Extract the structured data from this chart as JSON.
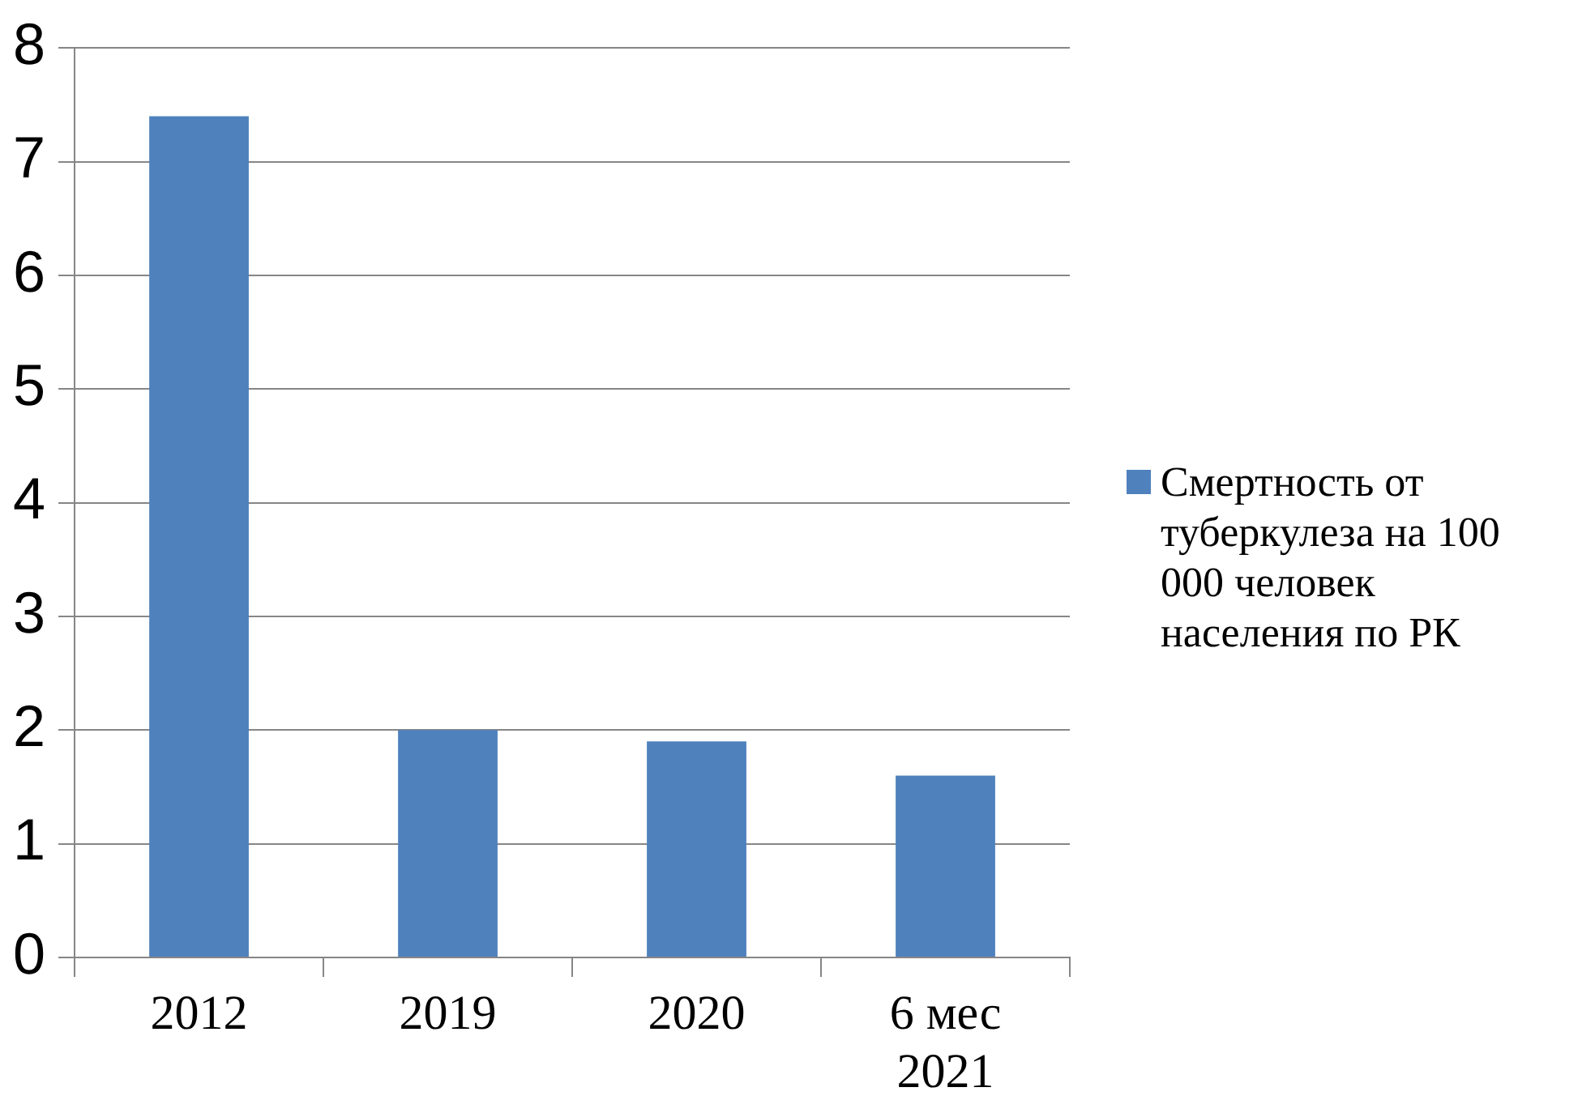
{
  "chart_data": {
    "type": "bar",
    "categories": [
      "2012",
      "2019",
      "2020",
      "6 мес 2021"
    ],
    "series": [
      {
        "name": "Смертность от туберкулеза на 100 000 человек населения по РК",
        "color": "#4f81bd",
        "values": [
          7.4,
          2.0,
          1.9,
          1.6
        ]
      }
    ],
    "ylim": [
      0,
      8
    ],
    "yticks": [
      0,
      1,
      2,
      3,
      4,
      5,
      6,
      7,
      8
    ],
    "grid": "y",
    "legend": "right"
  }
}
